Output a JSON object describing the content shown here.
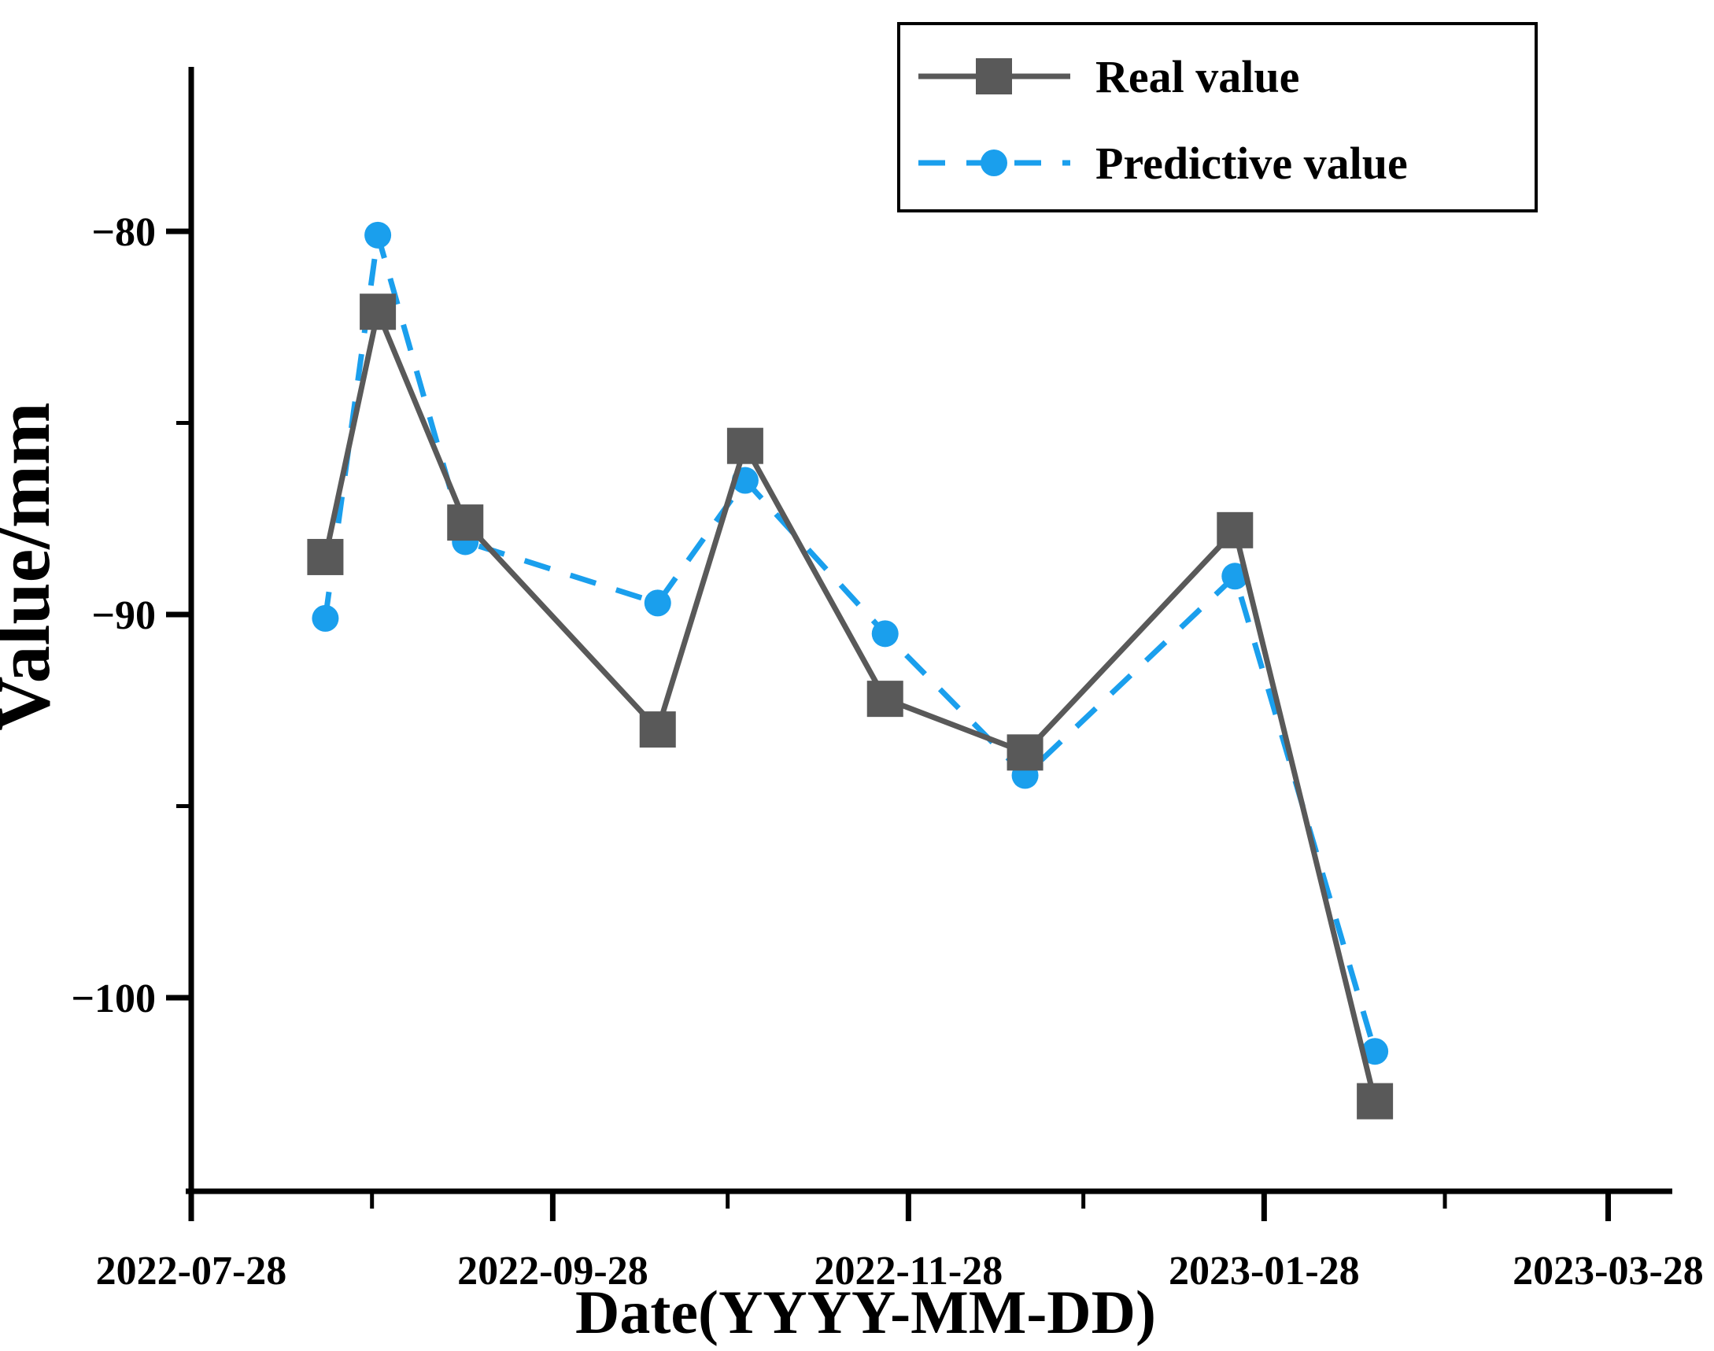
{
  "page": {
    "background": "#ffffff",
    "axis_color": "#000000",
    "text_color": "#000000"
  },
  "chart_data": {
    "type": "line",
    "title": "",
    "xlabel": "Date(YYYY-MM-DD)",
    "ylabel": "Value/mm",
    "grid": false,
    "legend_position": "top-right",
    "x_axis": {
      "start_date": "2022-07-28",
      "end_date": "2023-04-08",
      "major_ticks": [
        "2022-07-28",
        "2022-09-28",
        "2022-11-28",
        "2023-01-28",
        "2023-03-28"
      ],
      "major_tick_labels": [
        "2022-07-28",
        "2022-09-28",
        "2022-11-28",
        "2023-01-28",
        "2023-03-28"
      ],
      "minor_ticks": [
        "2022-08-28",
        "2022-10-28",
        "2022-12-28",
        "2023-02-28"
      ]
    },
    "y_axis": {
      "min": -105.05,
      "max": -75.71,
      "major_ticks": [
        -80,
        -90,
        -100
      ],
      "major_tick_labels": [
        "−80",
        "−90",
        "−100"
      ],
      "minor_ticks": [
        -85,
        -95
      ]
    },
    "x_dates": [
      "2022-08-20",
      "2022-08-29",
      "2022-09-13",
      "2022-10-16",
      "2022-10-31",
      "2022-11-24",
      "2022-12-18",
      "2023-01-23",
      "2023-02-16"
    ],
    "series": [
      {
        "name": "Real value",
        "color": "#595959",
        "marker": "square",
        "line_style": "solid",
        "values": [
          -88.5,
          -82.1,
          -87.6,
          -93.0,
          -85.6,
          -92.2,
          -93.6,
          -87.8,
          -102.7
        ]
      },
      {
        "name": "Predictive value",
        "color": "#1A9FED",
        "marker": "circle",
        "line_style": "dashed",
        "values": [
          -90.1,
          -80.1,
          -88.1,
          -89.7,
          -86.5,
          -90.5,
          -94.2,
          -89.0,
          -101.4
        ]
      }
    ]
  }
}
